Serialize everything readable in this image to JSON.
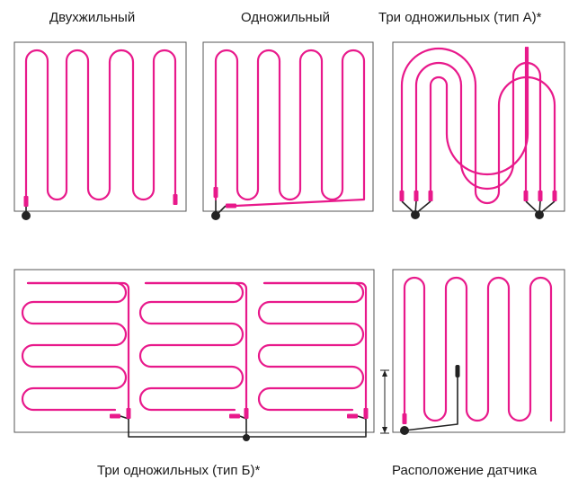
{
  "captions": {
    "two_core": "Двухжильный",
    "single_core": "Одножильный",
    "three_single_a": "Три одножильных (тип А)*",
    "three_single_b": "Три одножильных (тип Б)*",
    "sensor_location": "Расположение датчика"
  },
  "colors": {
    "cable": "#e8198b",
    "frame": "#555555",
    "wire": "#222222",
    "background": "#ffffff"
  }
}
